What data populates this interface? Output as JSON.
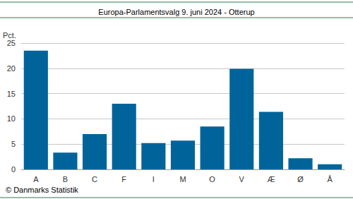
{
  "chart_data": {
    "type": "bar",
    "title": "Europa-Parlamentsvalg 9. juni 2024 - Otterup",
    "ylabel": "Pct.",
    "source": "© Danmarks Statistik",
    "categories": [
      "A",
      "B",
      "C",
      "F",
      "I",
      "M",
      "O",
      "V",
      "Æ",
      "Ø",
      "Å"
    ],
    "values": [
      23.5,
      3.3,
      7.0,
      13.0,
      5.2,
      5.7,
      8.5,
      19.9,
      11.4,
      2.2,
      1.0
    ],
    "color": "#00649b",
    "ylim": [
      0,
      25
    ],
    "yticks": [
      0,
      5,
      10,
      15,
      20,
      25
    ],
    "grid": true
  }
}
